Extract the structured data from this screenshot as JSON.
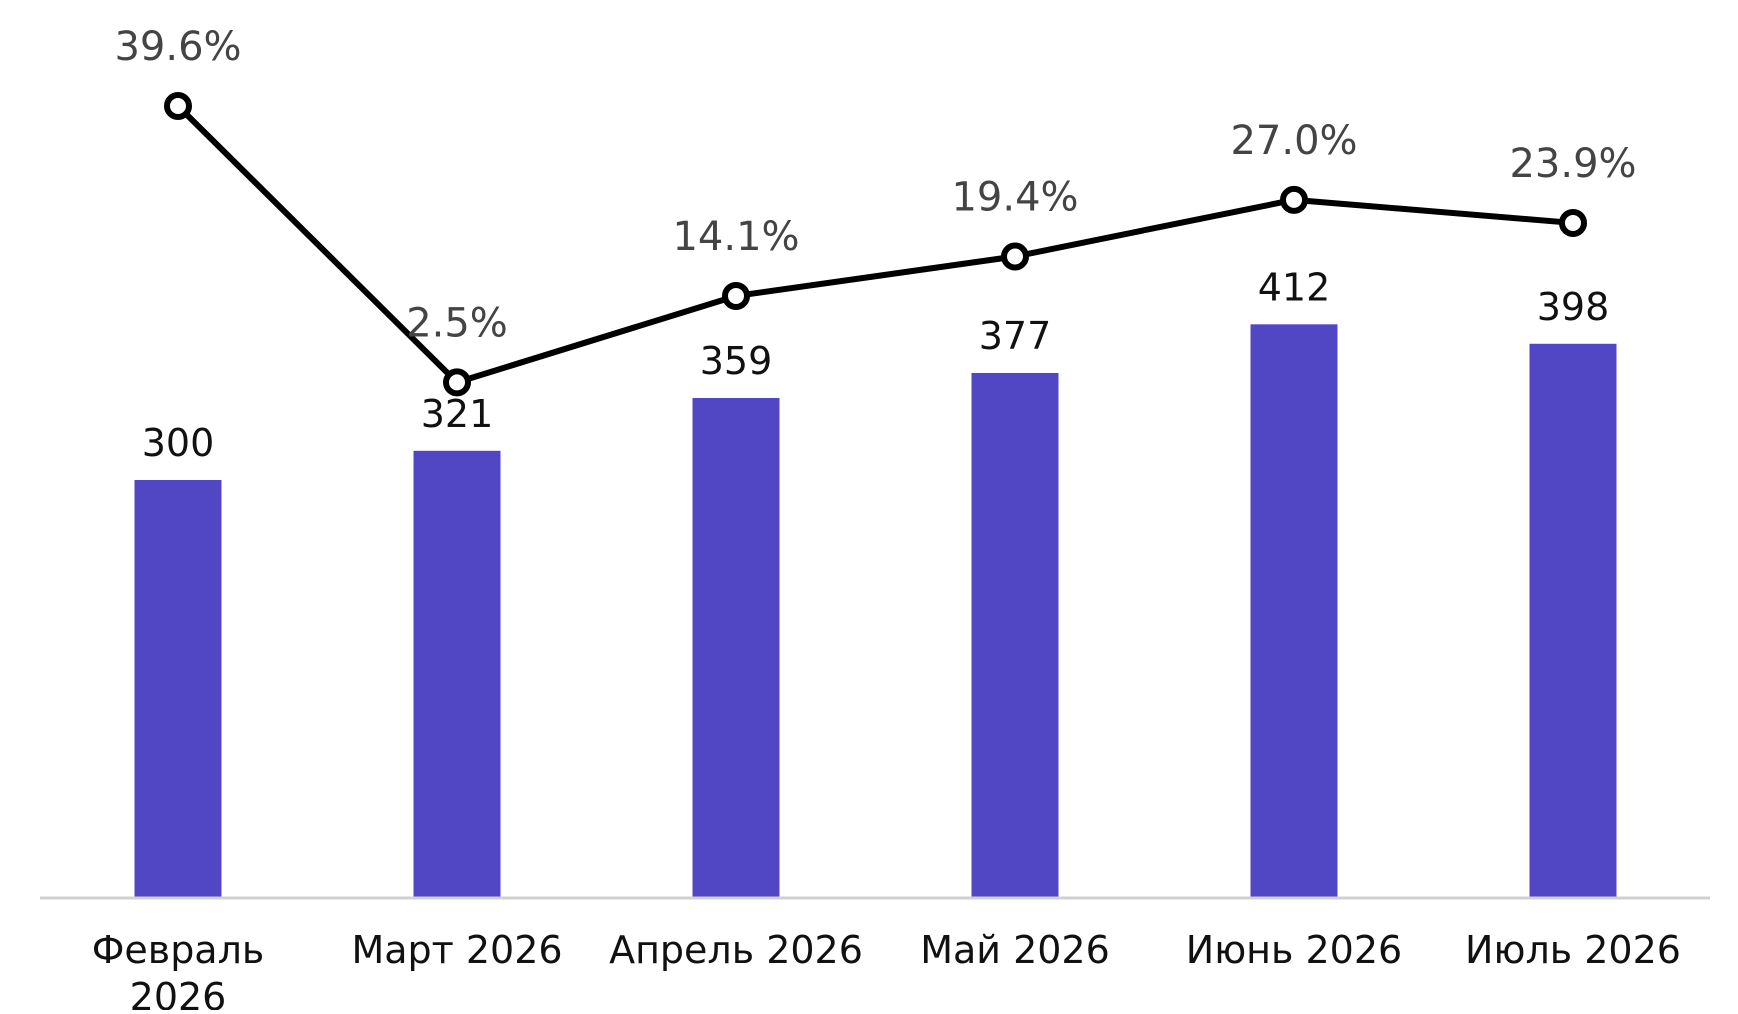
{
  "chart_data": {
    "type": "bar",
    "categories": [
      [
        "Февраль",
        "2026"
      ],
      [
        "Март 2026"
      ],
      [
        "Апрель 2026"
      ],
      [
        "Май 2026"
      ],
      [
        "Июнь 2026"
      ],
      [
        "Июль 2026"
      ]
    ],
    "series": [
      {
        "type": "bar",
        "values": [
          300,
          321,
          359,
          377,
          412,
          398
        ],
        "labels": [
          "300",
          "321",
          "359",
          "377",
          "412",
          "398"
        ],
        "color": "#5146C4"
      },
      {
        "type": "line",
        "values": [
          39.6,
          2.5,
          14.1,
          19.4,
          27.0,
          23.9
        ],
        "labels": [
          "39.6%",
          "2.5%",
          "14.1%",
          "19.4%",
          "27.0%",
          "23.9%"
        ],
        "color": "#000000",
        "marker": "hollow-circle"
      }
    ],
    "title": "",
    "xlabel": "",
    "ylabel": "",
    "legend": "none",
    "grid": false,
    "axis_color": "#D0D0D0"
  }
}
